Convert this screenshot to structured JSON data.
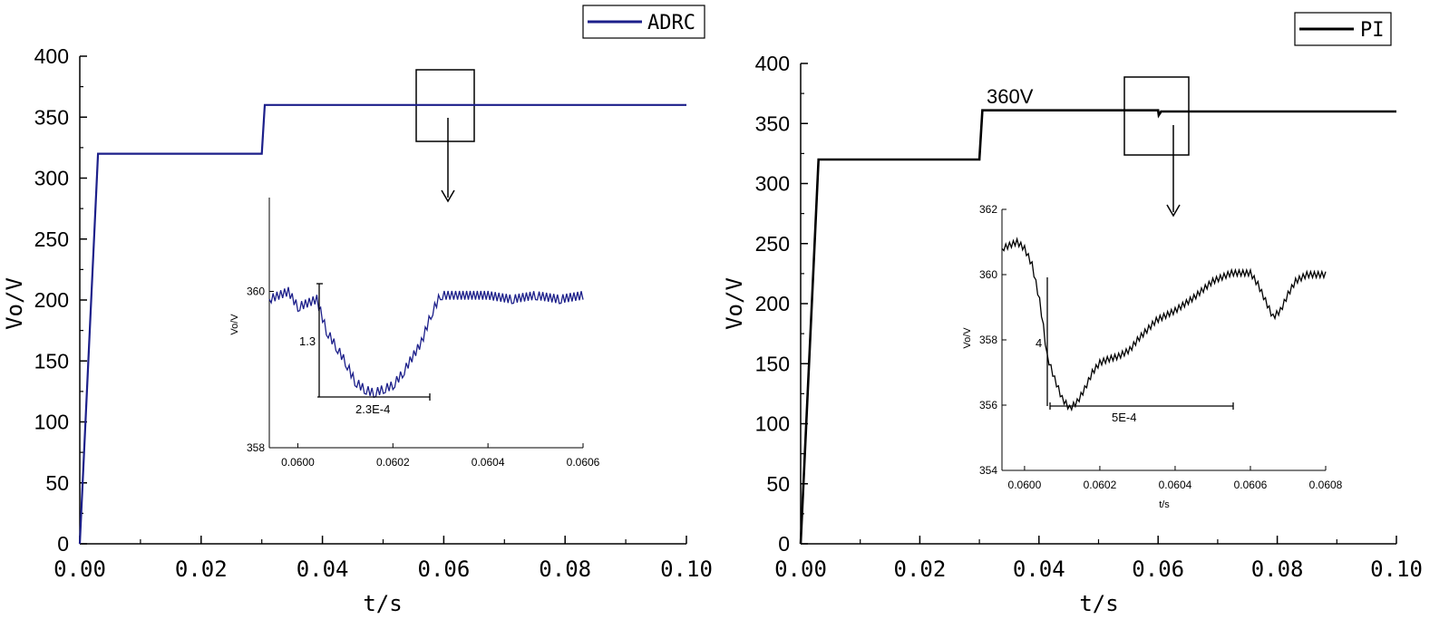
{
  "chart_data": [
    {
      "type": "line",
      "xlabel": "t/s",
      "ylabel": "Vo/V",
      "xlim": [
        0,
        0.1
      ],
      "ylim": [
        0,
        400
      ],
      "xticks": [
        "0.00",
        "0.02",
        "0.04",
        "0.06",
        "0.08",
        "0.10"
      ],
      "yticks": [
        "0",
        "50",
        "100",
        "150",
        "200",
        "250",
        "300",
        "350",
        "400"
      ],
      "legend": {
        "position": "top-right",
        "entries": [
          "ADRC"
        ]
      },
      "colors": {
        "line": "#1c1f8a"
      },
      "series": [
        {
          "name": "ADRC",
          "x": [
            0,
            0.003,
            0.03,
            0.0305,
            0.06,
            0.1
          ],
          "y": [
            0,
            320,
            320,
            360,
            360,
            360
          ]
        }
      ],
      "inset": {
        "xlim": [
          0.05994,
          0.0606
        ],
        "ylim": [
          358,
          361.2
        ],
        "xticks": [
          "0.0600",
          "0.0602",
          "0.0604",
          "0.0606"
        ],
        "yticks": [
          "358",
          "360"
        ],
        "ylabel": "Vo/V",
        "series": [
          {
            "name": "ADRC",
            "x": [
              0.05994,
              0.05998,
              0.06,
              0.06004,
              0.06006,
              0.06008,
              0.0601,
              0.06012,
              0.06014,
              0.06016,
              0.06018,
              0.0602,
              0.06022,
              0.06026,
              0.06028,
              0.0603,
              0.06034,
              0.0604,
              0.06045,
              0.0605,
              0.06055,
              0.0606
            ],
            "y": [
              359.9,
              360.0,
              359.8,
              359.9,
              359.5,
              359.3,
              359.1,
              358.85,
              358.75,
              358.7,
              358.75,
              358.8,
              358.95,
              359.35,
              359.7,
              359.95,
              359.95,
              359.95,
              359.9,
              359.95,
              359.9,
              359.95
            ]
          }
        ],
        "annotations": [
          "1.3",
          "2.3E-4"
        ]
      }
    },
    {
      "type": "line",
      "xlabel": "t/s",
      "ylabel": "Vo/V",
      "xlim": [
        0,
        0.1
      ],
      "ylim": [
        0,
        400
      ],
      "xticks": [
        "0.00",
        "0.02",
        "0.04",
        "0.06",
        "0.08",
        "0.10"
      ],
      "yticks": [
        "0",
        "50",
        "100",
        "150",
        "200",
        "250",
        "300",
        "350",
        "400"
      ],
      "legend": {
        "position": "top-right",
        "entries": [
          "PI"
        ]
      },
      "colors": {
        "line": "#000000"
      },
      "annotation_main": "360V",
      "series": [
        {
          "name": "PI",
          "x": [
            0,
            0.003,
            0.03,
            0.0305,
            0.06,
            0.0601,
            0.0605,
            0.1
          ],
          "y": [
            0,
            320,
            320,
            361,
            361,
            357,
            360,
            360
          ]
        }
      ],
      "inset": {
        "xlim": [
          0.05994,
          0.0608
        ],
        "ylim": [
          354,
          362
        ],
        "xticks": [
          "0.0600",
          "0.0602",
          "0.0604",
          "0.0606",
          "0.0608"
        ],
        "yticks": [
          "354",
          "356",
          "358",
          "360",
          "362"
        ],
        "xlabel": "t/s",
        "ylabel": "Vo/V",
        "series": [
          {
            "name": "PI",
            "x": [
              0.05994,
              0.05996,
              0.05998,
              0.06,
              0.06002,
              0.06004,
              0.06005,
              0.06006,
              0.06008,
              0.0601,
              0.06012,
              0.06014,
              0.06016,
              0.06018,
              0.0602,
              0.06022,
              0.06025,
              0.06028,
              0.0603,
              0.06035,
              0.0604,
              0.06045,
              0.0605,
              0.06055,
              0.0606,
              0.06062,
              0.06064,
              0.06066,
              0.06068,
              0.0607,
              0.06072,
              0.06075,
              0.06078,
              0.0608
            ],
            "y": [
              360.8,
              360.9,
              361.0,
              360.8,
              360.3,
              359.2,
              358.4,
              357.5,
              356.8,
              356.2,
              355.9,
              356.1,
              356.5,
              357.0,
              357.3,
              357.4,
              357.5,
              357.7,
              358.0,
              358.6,
              358.9,
              359.3,
              359.8,
              360.05,
              360.05,
              359.7,
              359.2,
              358.7,
              358.9,
              359.4,
              359.8,
              360.0,
              360.0,
              360.0
            ]
          }
        ],
        "annotations": [
          "4",
          "5E-4"
        ]
      }
    }
  ]
}
